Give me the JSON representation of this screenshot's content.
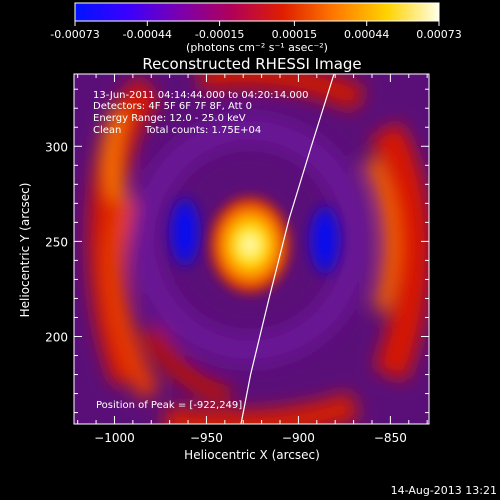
{
  "colorbar": {
    "min": -0.00073,
    "max": 0.00073,
    "ticks": [
      "-0.00073",
      "-0.00044",
      "-0.00015",
      "0.00015",
      "0.00044",
      "0.00073"
    ],
    "units_label": "(photons cm⁻² s⁻¹ asec⁻²)",
    "colormap": [
      "#0014ff",
      "#3a00ff",
      "#7a00b0",
      "#b0005a",
      "#e01e00",
      "#ff7a00",
      "#ffd200",
      "#ffffe6"
    ]
  },
  "chart_data": {
    "type": "heatmap",
    "title": "Reconstructed RHESSI Image",
    "xlabel": "Heliocentric X (arcsec)",
    "ylabel": "Heliocentric Y (arcsec)",
    "xlim": [
      -1022,
      -829
    ],
    "ylim": [
      154,
      338
    ],
    "x_ticks": [
      -1000,
      -950,
      -900,
      -850
    ],
    "y_ticks": [
      200,
      250,
      300
    ],
    "x_tick_labels": [
      "−1000",
      "−950",
      "−900",
      "−850"
    ],
    "y_tick_labels": [
      "200",
      "250",
      "300"
    ],
    "peak": [
      -922,
      249
    ],
    "annotations": {
      "time_range": "13-Jun-2011 04:14:44.000 to 04:20:14.000",
      "detectors": "Detectors: 4F 5F 6F 7F 8F, Att 0",
      "energy": "Energy Range: 12.0 - 25.0 keV",
      "method": "Clean",
      "counts": "Total counts: 1.75E+04",
      "peak_position": "Position of Peak = [-922,249]"
    },
    "limb_curve": [
      [
        -932,
        150
      ],
      [
        -926,
        180
      ],
      [
        -916,
        220
      ],
      [
        -905,
        262
      ],
      [
        -893,
        300
      ],
      [
        -880,
        340
      ]
    ]
  },
  "footer": {
    "timestamp": "14-Aug-2013 13:21"
  }
}
